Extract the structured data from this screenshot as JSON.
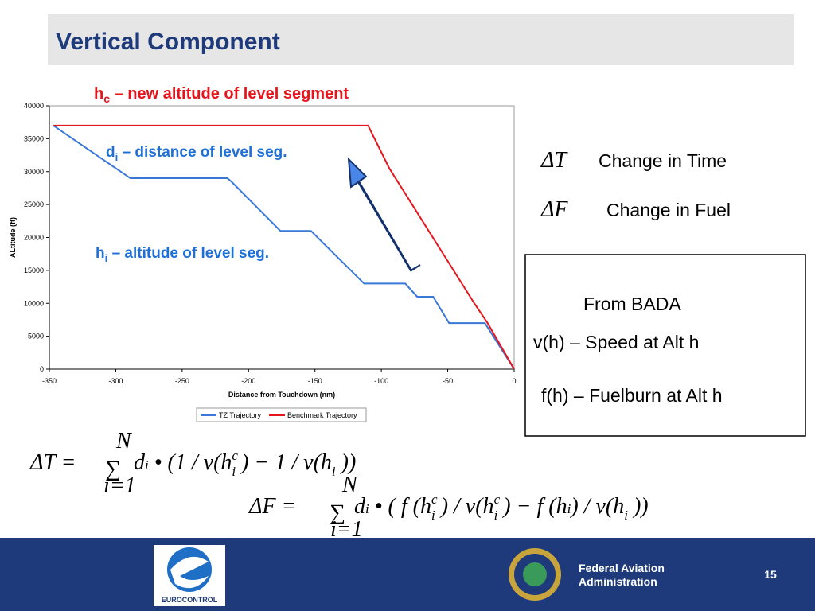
{
  "title": "Vertical Component",
  "chart_data": {
    "type": "line",
    "xlabel": "Distance from Touchdown (nm)",
    "ylabel": "ALtitude (ft)",
    "xlim": [
      -350,
      0
    ],
    "ylim": [
      0,
      40000
    ],
    "xticks": [
      -350,
      -300,
      -250,
      -200,
      -150,
      -100,
      -50,
      0
    ],
    "yticks": [
      0,
      5000,
      10000,
      15000,
      20000,
      25000,
      30000,
      35000,
      40000
    ],
    "legend": "bottom",
    "series": [
      {
        "name": "TZ Trajectory",
        "color": "#3a78d8",
        "x": [
          -347,
          -289,
          -216,
          -213,
          -176,
          -153,
          -143,
          -113,
          -82,
          -73,
          -61,
          -49,
          -22,
          0
        ],
        "values": [
          37000,
          29000,
          29000,
          28500,
          21000,
          21000,
          19000,
          13000,
          13000,
          11000,
          11000,
          7000,
          7000,
          0
        ]
      },
      {
        "name": "Benchmark Trajectory",
        "color": "#e8141c",
        "x": [
          -347,
          -110,
          -94,
          -30,
          -20,
          0
        ],
        "values": [
          37000,
          37000,
          30500,
          10000,
          7000,
          0
        ]
      }
    ]
  },
  "annotations": [
    {
      "main": "h",
      "sub": "c",
      "rest": " – new altitude of level segment"
    },
    {
      "main": "d",
      "sub": "i",
      "rest": " – distance of level seg."
    },
    {
      "main": "h",
      "sub": "i",
      "rest": " – altitude of level seg."
    }
  ],
  "legend_right": [
    {
      "symbol": "ΔT",
      "text": "Change in Time"
    },
    {
      "symbol": "ΔF",
      "text": "Change in Fuel"
    }
  ],
  "box": [
    "From BADA",
    "v(h) – Speed at Alt h",
    "f(h) – Fuelburn at Alt h"
  ],
  "equations": [
    {
      "lhs": "ΔT =",
      "sum": "∑",
      "upper": "N",
      "lower": "i=1",
      "body": [
        {
          "t": "d"
        },
        {
          "t": "i",
          "k": "small"
        },
        {
          "t": " • (1 / v(h"
        },
        {
          "t": "c",
          "k": "sup"
        },
        {
          "t": "i",
          "k": "subx"
        },
        {
          "t": " ) − 1 / v(h"
        },
        {
          "t": "i",
          "k": "sub"
        },
        {
          "t": " ))"
        }
      ]
    },
    {
      "lhs": "ΔF =",
      "sum": "∑",
      "upper": "N",
      "lower": "i=1",
      "body": [
        {
          "t": "d"
        },
        {
          "t": "i",
          "k": "small"
        },
        {
          "t": " • ( f (h"
        },
        {
          "t": "c",
          "k": "sup"
        },
        {
          "t": "i",
          "k": "subx"
        },
        {
          "t": " ) / v(h"
        },
        {
          "t": "c",
          "k": "sup"
        },
        {
          "t": "i",
          "k": "subx"
        },
        {
          "t": " ) − f (h"
        },
        {
          "t": "i",
          "k": "small"
        },
        {
          "t": ") / v(h"
        },
        {
          "t": "i",
          "k": "sub"
        },
        {
          "t": " ))"
        }
      ]
    }
  ],
  "footer": {
    "eurocontrol": "EUROCONTROL",
    "faa": [
      "Federal Aviation",
      "Administration"
    ],
    "page": "15"
  }
}
